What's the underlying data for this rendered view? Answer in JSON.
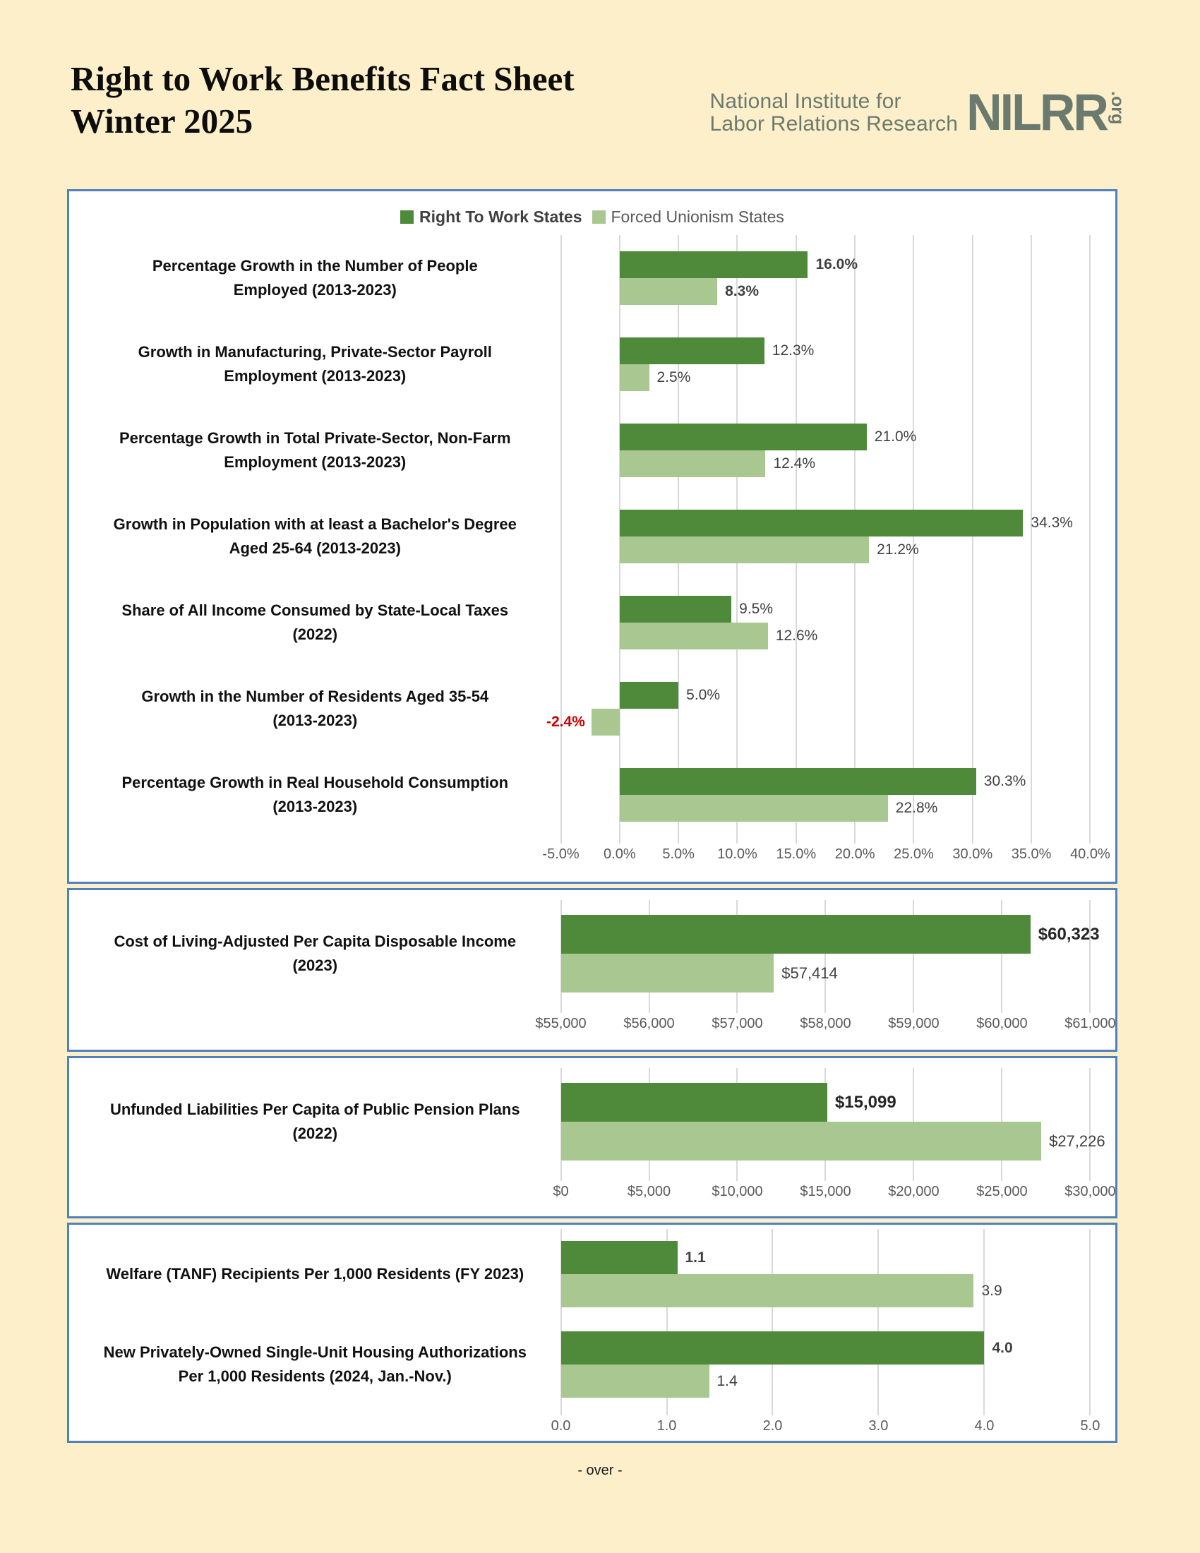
{
  "page": {
    "title_line1": "Right to Work Benefits Fact Sheet",
    "title_line2": "Winter 2025",
    "footer": "- over -"
  },
  "logo": {
    "line1": "National Institute for",
    "line2": "Labor Relations Research",
    "acronym": "NILRR",
    "suffix": ".org"
  },
  "colors": {
    "rtw_green": "#4F8A3B",
    "fu_green": "#A9C791",
    "negative_red": "#CC0000",
    "panel_border_blue": "#4E81BD",
    "page_background": "#FCEFCA",
    "gridline_gray": "#D9D9D9",
    "axis_text_gray": "#595959",
    "logo_sage": "#6B7A6E"
  },
  "chart_data": [
    {
      "type": "bar",
      "orientation": "horizontal",
      "legend": [
        "Right To Work States",
        "Forced Unionism States"
      ],
      "legend_position": "top-center",
      "grid": true,
      "axis": {
        "min": -5,
        "max": 40,
        "baseline": 0,
        "unit": "%",
        "tick_values": [
          -5,
          0,
          5,
          10,
          15,
          20,
          25,
          30,
          35,
          40
        ],
        "ticks": [
          "-5.0%",
          "0.0%",
          "5.0%",
          "10.0%",
          "15.0%",
          "20.0%",
          "25.0%",
          "30.0%",
          "35.0%",
          "40.0%"
        ]
      },
      "rows": [
        {
          "lines": [
            "Percentage Growth in the Number of People",
            "Employed (2013-2023)"
          ],
          "rtw": 16.0,
          "rtw_label": "16.0%",
          "rtw_bold": true,
          "fu": 8.3,
          "fu_label": "8.3%",
          "fu_bold": true
        },
        {
          "lines": [
            "Growth in Manufacturing, Private-Sector Payroll",
            "Employment (2013-2023)"
          ],
          "rtw": 12.3,
          "rtw_label": "12.3%",
          "fu": 2.5,
          "fu_label": "2.5%"
        },
        {
          "lines": [
            "Percentage Growth in Total Private-Sector, Non-Farm",
            "Employment (2013-2023)"
          ],
          "rtw": 21.0,
          "rtw_label": "21.0%",
          "fu": 12.4,
          "fu_label": "12.4%"
        },
        {
          "lines": [
            "Growth in Population with at least a Bachelor's Degree",
            "Aged 25-64 (2013-2023)"
          ],
          "rtw": 34.3,
          "rtw_label": "34.3%",
          "fu": 21.2,
          "fu_label": "21.2%"
        },
        {
          "lines": [
            "Share of All Income Consumed by State-Local Taxes",
            "(2022)"
          ],
          "rtw": 9.5,
          "rtw_label": "9.5%",
          "fu": 12.6,
          "fu_label": "12.6%"
        },
        {
          "lines": [
            "Growth in the Number of Residents Aged 35-54",
            "(2013-2023)"
          ],
          "rtw": 5.0,
          "rtw_label": "5.0%",
          "fu": -2.4,
          "fu_label": "-2.4%"
        },
        {
          "lines": [
            "Percentage Growth in Real Household Consumption",
            "(2013-2023)"
          ],
          "rtw": 30.3,
          "rtw_label": "30.3%",
          "fu": 22.8,
          "fu_label": "22.8%"
        }
      ]
    },
    {
      "type": "bar",
      "orientation": "horizontal",
      "grid": true,
      "axis": {
        "min": 55000,
        "max": 61000,
        "baseline": 55000,
        "unit": "$",
        "tick_values": [
          55000,
          56000,
          57000,
          58000,
          59000,
          60000,
          61000
        ],
        "ticks": [
          "$55,000",
          "$56,000",
          "$57,000",
          "$58,000",
          "$59,000",
          "$60,000",
          "$61,000"
        ]
      },
      "rows": [
        {
          "lines": [
            "Cost of Living-Adjusted Per Capita Disposable Income",
            "(2023)"
          ],
          "rtw": 60323,
          "rtw_label": "$60,323",
          "rtw_bold": true,
          "fu": 57414,
          "fu_label": "$57,414"
        }
      ]
    },
    {
      "type": "bar",
      "orientation": "horizontal",
      "grid": true,
      "axis": {
        "min": 0,
        "max": 30000,
        "baseline": 0,
        "unit": "$",
        "tick_values": [
          0,
          5000,
          10000,
          15000,
          20000,
          25000,
          30000
        ],
        "ticks": [
          "$0",
          "$5,000",
          "$10,000",
          "$15,000",
          "$20,000",
          "$25,000",
          "$30,000"
        ]
      },
      "rows": [
        {
          "lines": [
            "Unfunded Liabilities Per Capita of Public Pension Plans",
            "(2022)"
          ],
          "rtw": 15099,
          "rtw_label": "$15,099",
          "rtw_bold": true,
          "fu": 27226,
          "fu_label": "$27,226"
        }
      ]
    },
    {
      "type": "bar",
      "orientation": "horizontal",
      "grid": true,
      "axis": {
        "min": 0,
        "max": 5,
        "baseline": 0,
        "unit": "",
        "tick_values": [
          0,
          1,
          2,
          3,
          4,
          5
        ],
        "ticks": [
          "0.0",
          "1.0",
          "2.0",
          "3.0",
          "4.0",
          "5.0"
        ]
      },
      "rows": [
        {
          "lines": [
            "Welfare (TANF) Recipients Per 1,000 Residents (FY 2023)"
          ],
          "rtw": 1.1,
          "rtw_label": "1.1",
          "rtw_bold": true,
          "fu": 3.9,
          "fu_label": "3.9"
        },
        {
          "lines": [
            "New Privately-Owned Single-Unit Housing Authorizations",
            "Per 1,000 Residents (2024, Jan.-Nov.)"
          ],
          "rtw": 4.0,
          "rtw_label": "4.0",
          "rtw_bold": true,
          "fu": 1.4,
          "fu_label": "1.4"
        }
      ]
    }
  ]
}
